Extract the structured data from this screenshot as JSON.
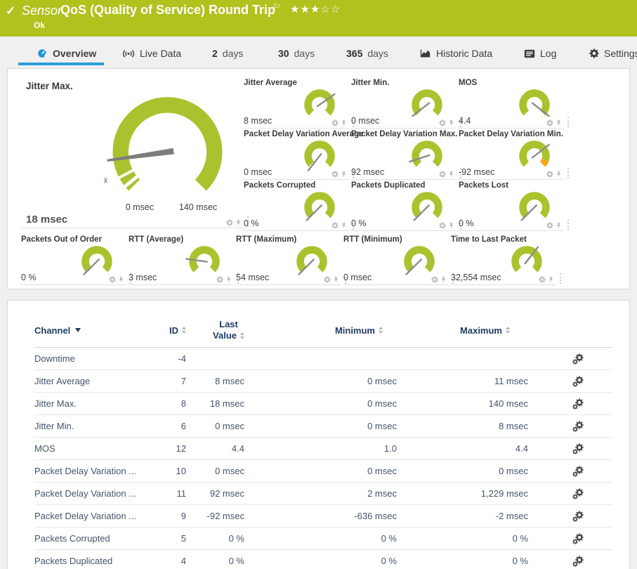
{
  "topbar": {
    "check": "✓",
    "kind": "Sensor",
    "title": "QoS (Quality of Service) Round Trip",
    "flag": "⚐",
    "stars": "★★★☆☆",
    "status": "Ok"
  },
  "tabs": {
    "overview": "Overview",
    "live_data": "Live Data",
    "d2_num": "2",
    "d2_unit": "days",
    "d30_num": "30",
    "d30_unit": "days",
    "d365_num": "365",
    "d365_unit": "days",
    "historic": "Historic Data",
    "log": "Log",
    "settings": "Settings"
  },
  "colors": {
    "header_green": "#b1c11e",
    "gauge_green": "#a9c32e",
    "gauge_yellow": "#f0c231",
    "accent_orange": "#f5a81c",
    "needle_gray": "#8a8a8a",
    "tab_active_blue": "#2b9cd8",
    "table_header_navy": "#1e3a5f"
  },
  "big_gauge": {
    "label": "Jitter Max.",
    "value": "18 msec",
    "scale_min": "0 msec",
    "scale_max": "140 msec",
    "avg_marker": "x̄",
    "needle_deg": 172
  },
  "small_gauges": [
    {
      "label": "Jitter Average",
      "value": "8 msec",
      "color": "green",
      "needle_deg": -35
    },
    {
      "label": "Jitter Min.",
      "value": "0 msec",
      "color": "green",
      "needle_deg": 142
    },
    {
      "label": "MOS",
      "value": "4.4",
      "color": "green",
      "needle_deg": 38
    },
    {
      "label": "Packet Delay Variation Average",
      "value": "0 msec",
      "color": "green",
      "needle_deg": 128
    },
    {
      "label": "Packet Delay Variation Max.",
      "value": "92 msec",
      "color": "green",
      "needle_deg": 162
    },
    {
      "label": "Packet Delay Variation Min.",
      "value": "-92 msec",
      "color": "green",
      "needle_deg": -38
    },
    {
      "label": "Packets Corrupted",
      "value": "0 %",
      "color": "yellow",
      "needle_deg": 135
    },
    {
      "label": "Packets Duplicated",
      "value": "0 %",
      "color": "yellow",
      "needle_deg": 135
    },
    {
      "label": "Packets Lost",
      "value": "0 %",
      "color": "yellow",
      "needle_deg": 135
    },
    {
      "label": "Packets Out of Order",
      "value": "0 %",
      "color": "yellow",
      "needle_deg": 135
    },
    {
      "label": "RTT (Average)",
      "value": "3 msec",
      "color": "green",
      "needle_deg": 188
    },
    {
      "label": "RTT (Maximum)",
      "value": "54 msec",
      "color": "green",
      "needle_deg": 135
    },
    {
      "label": "RTT (Minimum)",
      "value": "0 msec",
      "color": "green",
      "needle_deg": 135
    },
    {
      "label": "Time to Last Packet",
      "value": "32,554 msec",
      "color": "green",
      "needle_deg": -52
    }
  ],
  "table": {
    "headers": {
      "channel": "Channel",
      "id": "ID",
      "last1": "Last",
      "last2": "Value",
      "min": "Minimum",
      "max": "Maximum"
    },
    "rows": [
      {
        "channel": "Downtime",
        "id": "-4",
        "last": "",
        "min": "",
        "max": ""
      },
      {
        "channel": "Jitter Average",
        "id": "7",
        "last": "8 msec",
        "min": "0 msec",
        "max": "11 msec"
      },
      {
        "channel": "Jitter Max.",
        "id": "8",
        "last": "18 msec",
        "min": "0 msec",
        "max": "140 msec"
      },
      {
        "channel": "Jitter Min.",
        "id": "6",
        "last": "0 msec",
        "min": "0 msec",
        "max": "8 msec"
      },
      {
        "channel": "MOS",
        "id": "12",
        "last": "4.4",
        "min": "1.0",
        "max": "4.4"
      },
      {
        "channel": "Packet Delay Variation ...",
        "id": "10",
        "last": "0 msec",
        "min": "0 msec",
        "max": "0 msec"
      },
      {
        "channel": "Packet Delay Variation ...",
        "id": "11",
        "last": "92 msec",
        "min": "2 msec",
        "max": "1,229 msec"
      },
      {
        "channel": "Packet Delay Variation ...",
        "id": "9",
        "last": "-92 msec",
        "min": "-636 msec",
        "max": "-2 msec"
      },
      {
        "channel": "Packets Corrupted",
        "id": "5",
        "last": "0 %",
        "min": "0 %",
        "max": "0 %"
      },
      {
        "channel": "Packets Duplicated",
        "id": "4",
        "last": "0 %",
        "min": "0 %",
        "max": "0 %"
      }
    ]
  }
}
